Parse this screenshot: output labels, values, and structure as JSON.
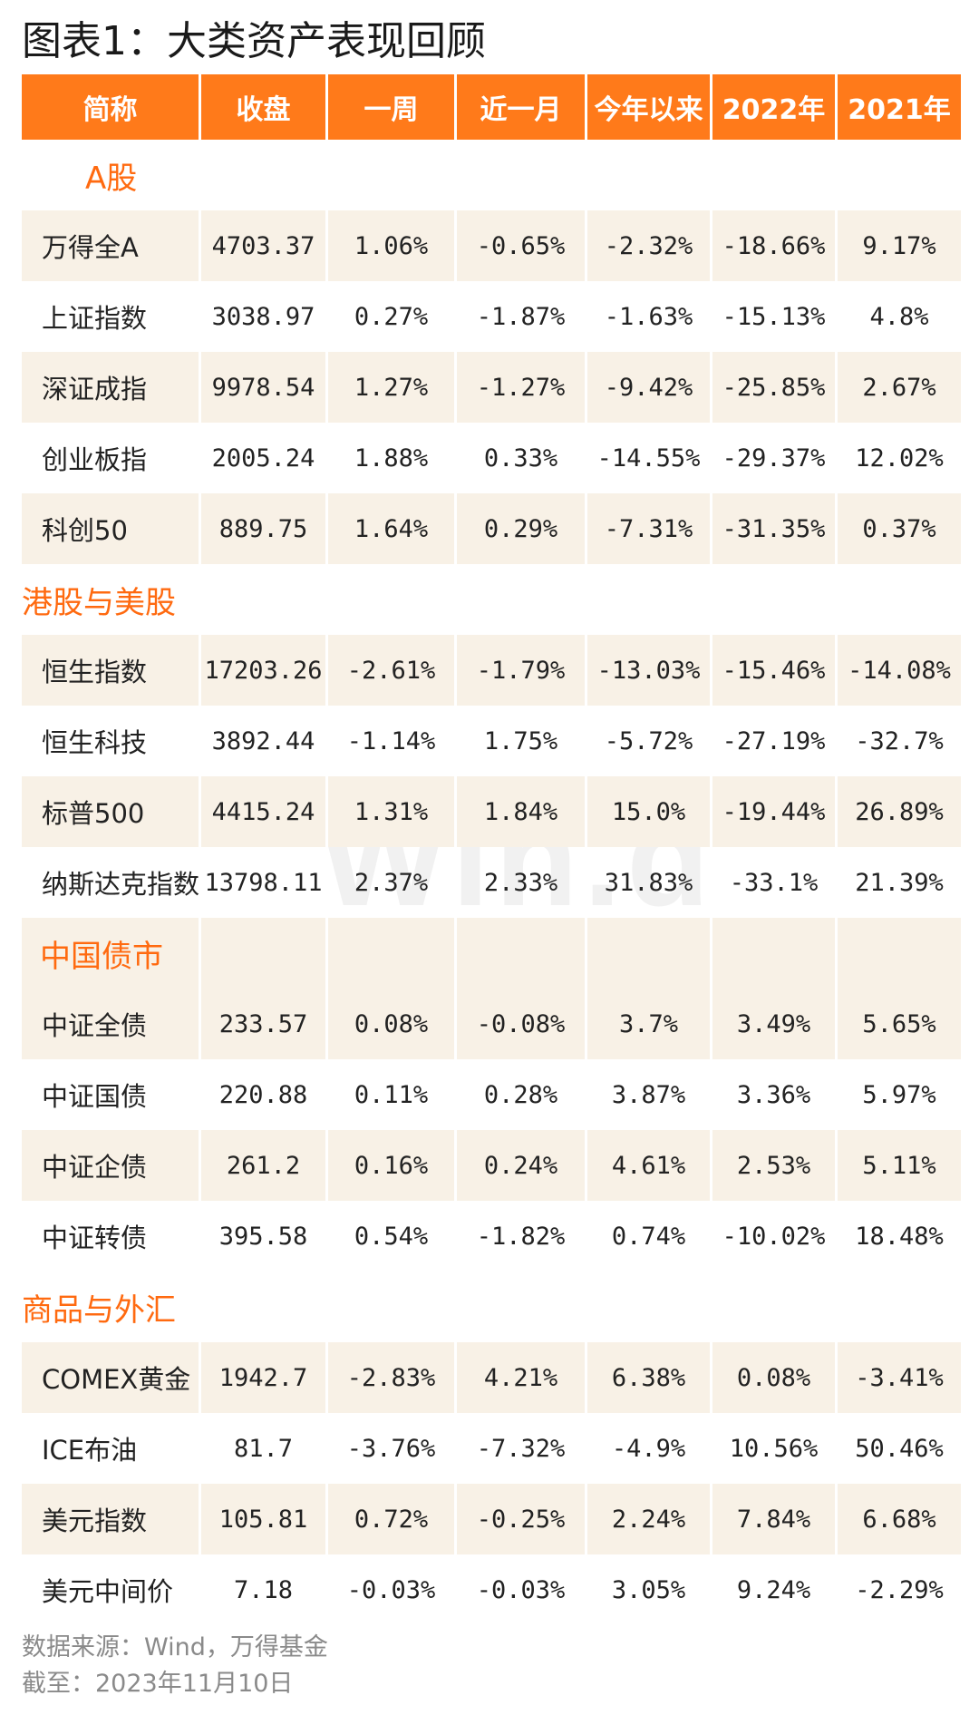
{
  "title": "图表1：大类资产表现回顾",
  "header": [
    "简称",
    "收盘",
    "一周",
    "近一月",
    "今年以来",
    "2022年",
    "2021年"
  ],
  "watermark": "Win.d",
  "sections": [
    {
      "label": "A股",
      "rows": [
        [
          "万得全A",
          "4703.37",
          "1.06%",
          "-0.65%",
          "-2.32%",
          "-18.66%",
          "9.17%"
        ],
        [
          "上证指数",
          "3038.97",
          "0.27%",
          "-1.87%",
          "-1.63%",
          "-15.13%",
          "4.8%"
        ],
        [
          "深证成指",
          "9978.54",
          "1.27%",
          "-1.27%",
          "-9.42%",
          "-25.85%",
          "2.67%"
        ],
        [
          "创业板指",
          "2005.24",
          "1.88%",
          "0.33%",
          "-14.55%",
          "-29.37%",
          "12.02%"
        ],
        [
          "科创50",
          "889.75",
          "1.64%",
          "0.29%",
          "-7.31%",
          "-31.35%",
          "0.37%"
        ]
      ]
    },
    {
      "label": "港股与美股",
      "rows": [
        [
          "恒生指数",
          "17203.26",
          "-2.61%",
          "-1.79%",
          "-13.03%",
          "-15.46%",
          "-14.08%"
        ],
        [
          "恒生科技",
          "3892.44",
          "-1.14%",
          "1.75%",
          "-5.72%",
          "-27.19%",
          "-32.7%"
        ],
        [
          "标普500",
          "4415.24",
          "1.31%",
          "1.84%",
          "15.0%",
          "-19.44%",
          "26.89%"
        ],
        [
          "纳斯达克指数",
          "13798.11",
          "2.37%",
          "2.33%",
          "31.83%",
          "-33.1%",
          "21.39%"
        ]
      ]
    },
    {
      "label": "中国债市",
      "rows": [
        [
          "中证全债",
          "233.57",
          "0.08%",
          "-0.08%",
          "3.7%",
          "3.49%",
          "5.65%"
        ],
        [
          "中证国债",
          "220.88",
          "0.11%",
          "0.28%",
          "3.87%",
          "3.36%",
          "5.97%"
        ],
        [
          "中证企债",
          "261.2",
          "0.16%",
          "0.24%",
          "4.61%",
          "2.53%",
          "5.11%"
        ],
        [
          "中证转债",
          "395.58",
          "0.54%",
          "-1.82%",
          "0.74%",
          "-10.02%",
          "18.48%"
        ]
      ]
    },
    {
      "label": "商品与外汇",
      "rows": [
        [
          "COMEX黄金",
          "1942.7",
          "-2.83%",
          "4.21%",
          "6.38%",
          "0.08%",
          "-3.41%"
        ],
        [
          "ICE布油",
          "81.7",
          "-3.76%",
          "-7.32%",
          "-4.9%",
          "10.56%",
          "50.46%"
        ],
        [
          "美元指数",
          "105.81",
          "0.72%",
          "-0.25%",
          "2.24%",
          "7.84%",
          "6.68%"
        ],
        [
          "美元中间价",
          "7.18",
          "-0.03%",
          "-0.03%",
          "3.05%",
          "9.24%",
          "-2.29%"
        ]
      ]
    }
  ],
  "footer": {
    "source": "数据来源：Wind，万得基金",
    "date": "截至：2023年11月10日"
  },
  "colors": {
    "header_bg": "#ff7a1a",
    "section_label": "#ff6a10",
    "row_shade": "#f8f1e6"
  }
}
